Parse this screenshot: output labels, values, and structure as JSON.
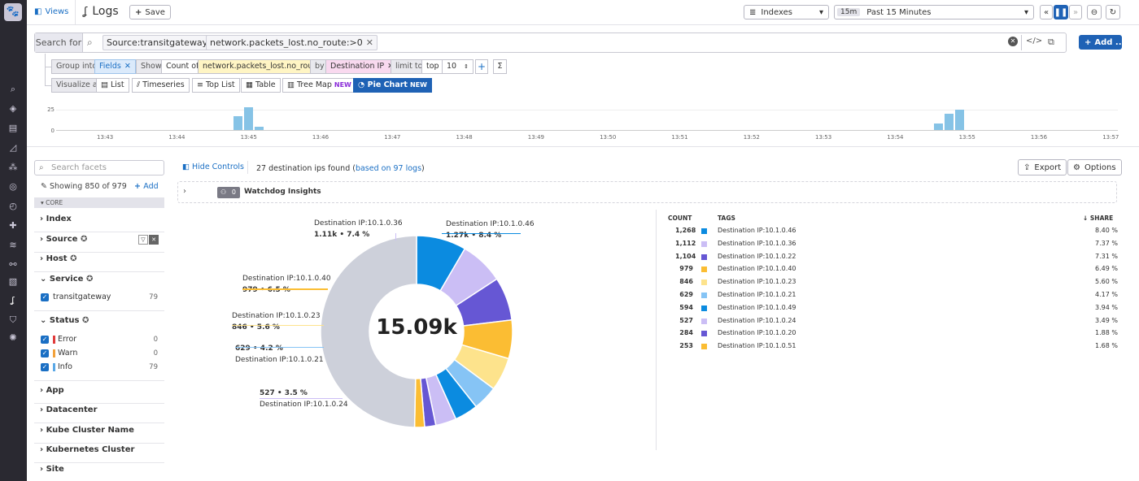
{
  "header": {
    "views_label": "Views",
    "page_title": "Logs",
    "save_label": "Save",
    "indexes_label": "Indexes",
    "time_badge": "15m",
    "time_range": "Past 15 Minutes",
    "add_label": "Add ..."
  },
  "search": {
    "label": "Search for",
    "pills": [
      "Source:transitgateway",
      "network.packets_lost.no_route:>0"
    ]
  },
  "group": {
    "group_into_label": "Group into",
    "group_into_value": "Fields",
    "show_label": "Show",
    "count_of_label": "Count of",
    "count_field": "network.packets_lost.no_route",
    "by_label": "by",
    "by_value": "Destination IP",
    "limit_label": "limit to",
    "limit_dir": "top",
    "limit_n": "10",
    "sigma": "Σ"
  },
  "visualize": {
    "label": "Visualize as",
    "options": [
      "List",
      "Timeseries",
      "Top List",
      "Table",
      "Tree Map",
      "Pie Chart"
    ],
    "new_badge": "NEW"
  },
  "timeseries": {
    "ylabels": [
      "25",
      "0"
    ],
    "ticks": [
      "13:43",
      "13:44",
      "13:45",
      "13:46",
      "13:47",
      "13:48",
      "13:49",
      "13:50",
      "13:51",
      "13:52",
      "13:53",
      "13:54",
      "13:55",
      "13:56",
      "13:57"
    ],
    "bars": [
      {
        "t": 1.9,
        "v": 0.6
      },
      {
        "t": 2.05,
        "v": 1.0
      },
      {
        "t": 2.2,
        "v": 0.15
      },
      {
        "t": 11.65,
        "v": 0.3
      },
      {
        "t": 11.8,
        "v": 0.7
      },
      {
        "t": 11.95,
        "v": 0.9
      }
    ]
  },
  "facets": {
    "search_placeholder": "Search facets",
    "showing": "Showing 850 of 979",
    "add_label": "Add",
    "core_label": "CORE",
    "groups": [
      "Index",
      "Source",
      "Host",
      "Service",
      "Status",
      "App",
      "Datacenter",
      "Kube Cluster Name",
      "Kubernetes Cluster",
      "Site"
    ],
    "service_items": [
      {
        "name": "transitgateway",
        "count": "79"
      }
    ],
    "status_items": [
      {
        "name": "Error",
        "count": "0",
        "color": "#e03b3b"
      },
      {
        "name": "Warn",
        "count": "0",
        "color": "#f2a13a"
      },
      {
        "name": "Info",
        "count": "79",
        "color": "#5aa8e6"
      }
    ]
  },
  "main": {
    "hide_controls": "Hide Controls",
    "found_text": "27 destination ips found (",
    "found_link": "based on 97 logs",
    "found_close": ")",
    "export_label": "Export",
    "options_label": "Options",
    "watchdog_count": "0",
    "watchdog_label": "Watchdog Insights"
  },
  "chart_data": {
    "type": "pie",
    "center_label": "15.09k",
    "legend_headers": {
      "count": "COUNT",
      "tags": "TAGS",
      "share": "SHARE"
    },
    "slices": [
      {
        "tag": "Destination IP:10.1.0.46",
        "count": "1,268",
        "share": "8.40 %",
        "pct": 8.4,
        "color": "#0b8be0"
      },
      {
        "tag": "Destination IP:10.1.0.36",
        "count": "1,112",
        "share": "7.37 %",
        "pct": 7.37,
        "color": "#cbbef5"
      },
      {
        "tag": "Destination IP:10.1.0.22",
        "count": "1,104",
        "share": "7.31 %",
        "pct": 7.31,
        "color": "#6657d4"
      },
      {
        "tag": "Destination IP:10.1.0.40",
        "count": "979",
        "share": "6.49 %",
        "pct": 6.49,
        "color": "#fbbd33"
      },
      {
        "tag": "Destination IP:10.1.0.23",
        "count": "846",
        "share": "5.60 %",
        "pct": 5.6,
        "color": "#fde38c"
      },
      {
        "tag": "Destination IP:10.1.0.21",
        "count": "629",
        "share": "4.17 %",
        "pct": 4.17,
        "color": "#86c4f5"
      },
      {
        "tag": "Destination IP:10.1.0.49",
        "count": "594",
        "share": "3.94 %",
        "pct": 3.94,
        "color": "#0b8be0"
      },
      {
        "tag": "Destination IP:10.1.0.24",
        "count": "527",
        "share": "3.49 %",
        "pct": 3.49,
        "color": "#cbbef5"
      },
      {
        "tag": "Destination IP:10.1.0.20",
        "count": "284",
        "share": "1.88 %",
        "pct": 1.88,
        "color": "#6657d4"
      },
      {
        "tag": "Destination IP:10.1.0.51",
        "count": "253",
        "share": "1.68 %",
        "pct": 1.68,
        "color": "#fbbd33"
      }
    ],
    "other_color": "#cdd0da",
    "callouts": [
      {
        "tag": "Destination IP:10.1.0.36",
        "value": "1.11k • 7.4 %"
      },
      {
        "tag": "Destination IP:10.1.0.46",
        "value": "1.27k • 8.4 %"
      },
      {
        "tag": "Destination IP:10.1.0.40",
        "value": "979 • 6.5 %"
      },
      {
        "tag": "Destination IP:10.1.0.23",
        "value": "846 • 5.6 %"
      },
      {
        "tag": "Destination IP:10.1.0.21",
        "value": "629 • 4.2 %"
      },
      {
        "tag": "Destination IP:10.1.0.24",
        "value": "527 • 3.5 %"
      }
    ]
  }
}
